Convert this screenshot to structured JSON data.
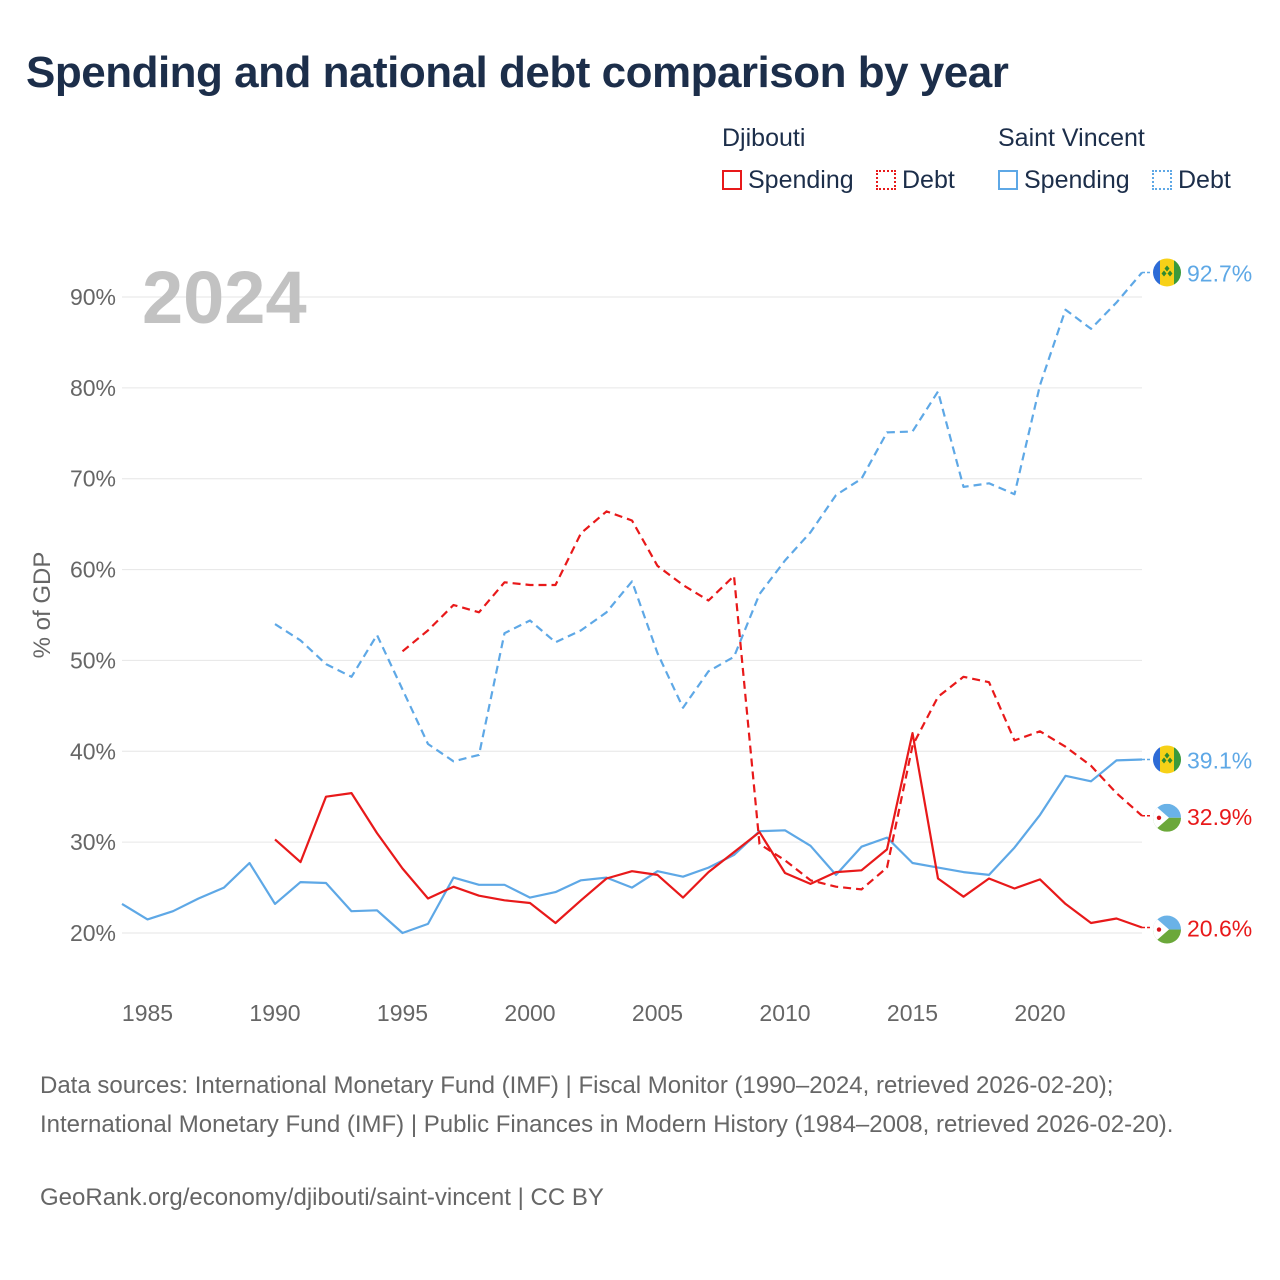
{
  "title": "Spending and national debt comparison by year",
  "legend": {
    "groups": [
      {
        "name": "Djibouti",
        "items": [
          "Spending",
          "Debt"
        ]
      },
      {
        "name": "Saint Vincent",
        "items": [
          "Spending",
          "Debt"
        ]
      }
    ]
  },
  "year_label": "2024",
  "sources": "Data sources: International Monetary Fund (IMF) | Fiscal Monitor (1990–2024, retrieved 2026-02-20); International Monetary Fund (IMF) | Public Finances in Modern History (1984–2008, retrieved 2026-02-20).",
  "credit": "GeoRank.org/economy/djibouti/saint-vincent | CC BY",
  "colors": {
    "djibouti": "#e8191a",
    "saint_vincent": "#5ea8e6"
  },
  "chart_data": {
    "type": "line",
    "title": "Spending and national debt comparison by year",
    "xlabel": "",
    "ylabel": "% of GDP",
    "xlim": [
      1984,
      2024
    ],
    "ylim": [
      15,
      95
    ],
    "xticks": [
      1985,
      1990,
      1995,
      2000,
      2005,
      2010,
      2015,
      2020
    ],
    "yticks": [
      20,
      30,
      40,
      50,
      60,
      70,
      80,
      90
    ],
    "ytick_labels": [
      "20%",
      "30%",
      "40%",
      "50%",
      "60%",
      "70%",
      "80%",
      "90%"
    ],
    "series": [
      {
        "name": "Saint Vincent Debt",
        "country": "saint_vincent",
        "style": "dashed",
        "x": [
          1990,
          1991,
          1992,
          1993,
          1994,
          1995,
          1996,
          1997,
          1998,
          1999,
          2000,
          2001,
          2002,
          2003,
          2004,
          2005,
          2006,
          2007,
          2008,
          2009,
          2010,
          2011,
          2012,
          2013,
          2014,
          2015,
          2016,
          2017,
          2018,
          2019,
          2020,
          2021,
          2022,
          2023,
          2024
        ],
        "values": [
          54.0,
          52.2,
          49.6,
          48.2,
          52.8,
          46.8,
          40.8,
          38.9,
          39.6,
          53.0,
          54.4,
          52.0,
          53.3,
          55.3,
          58.7,
          50.8,
          44.8,
          48.8,
          50.4,
          57.3,
          61.0,
          64.1,
          68.2,
          70.0,
          75.1,
          75.2,
          79.6,
          69.1,
          69.5,
          68.3,
          80.3,
          88.6,
          86.5,
          89.4,
          92.7
        ],
        "end_label": "92.7%"
      },
      {
        "name": "Saint Vincent Spending",
        "country": "saint_vincent",
        "style": "solid",
        "x": [
          1984,
          1985,
          1986,
          1987,
          1988,
          1989,
          1990,
          1991,
          1992,
          1993,
          1994,
          1995,
          1996,
          1997,
          1998,
          1999,
          2000,
          2001,
          2002,
          2003,
          2004,
          2005,
          2006,
          2007,
          2008,
          2009,
          2010,
          2011,
          2012,
          2013,
          2014,
          2015,
          2016,
          2017,
          2018,
          2019,
          2020,
          2021,
          2022,
          2023,
          2024
        ],
        "values": [
          23.2,
          21.5,
          22.4,
          23.8,
          25.0,
          27.7,
          23.2,
          25.6,
          25.5,
          22.4,
          22.5,
          20.0,
          21.0,
          26.1,
          25.3,
          25.3,
          23.9,
          24.5,
          25.8,
          26.1,
          25.0,
          26.8,
          26.2,
          27.2,
          28.6,
          31.2,
          31.3,
          29.6,
          26.4,
          29.5,
          30.5,
          27.7,
          27.2,
          26.7,
          26.4,
          29.4,
          33.0,
          37.3,
          36.7,
          39.0,
          39.1
        ],
        "end_label": "39.1%"
      },
      {
        "name": "Djibouti Debt",
        "country": "djibouti",
        "style": "dashed",
        "x": [
          1995,
          1996,
          1997,
          1998,
          1999,
          2000,
          2001,
          2002,
          2003,
          2004,
          2005,
          2006,
          2007,
          2008,
          2009,
          2010,
          2011,
          2012,
          2013,
          2014,
          2015,
          2016,
          2017,
          2018,
          2019,
          2020,
          2021,
          2022,
          2023,
          2024
        ],
        "values": [
          51.0,
          53.3,
          56.1,
          55.3,
          58.6,
          58.3,
          58.3,
          64.0,
          66.4,
          65.4,
          60.4,
          58.3,
          56.6,
          59.3,
          29.8,
          28.0,
          25.8,
          25.1,
          24.8,
          27.2,
          40.6,
          46.0,
          48.2,
          47.6,
          41.2,
          42.2,
          40.5,
          38.4,
          35.4,
          32.9
        ],
        "end_label": "32.9%"
      },
      {
        "name": "Djibouti Spending",
        "country": "djibouti",
        "style": "solid",
        "x": [
          1990,
          1991,
          1992,
          1993,
          1994,
          1995,
          1996,
          1997,
          1998,
          1999,
          2000,
          2001,
          2002,
          2003,
          2004,
          2005,
          2006,
          2007,
          2008,
          2009,
          2010,
          2011,
          2012,
          2013,
          2014,
          2015,
          2016,
          2017,
          2018,
          2019,
          2020,
          2021,
          2022,
          2023,
          2024
        ],
        "values": [
          30.3,
          27.8,
          35.0,
          35.4,
          31.0,
          27.1,
          23.8,
          25.1,
          24.1,
          23.6,
          23.3,
          21.1,
          23.6,
          26.0,
          26.8,
          26.4,
          23.9,
          26.7,
          28.9,
          31.1,
          26.6,
          25.4,
          26.7,
          26.9,
          29.2,
          42.0,
          26.0,
          24.0,
          26.0,
          24.9,
          25.9,
          23.2,
          21.1,
          21.6,
          20.6
        ],
        "end_label": "20.6%"
      }
    ]
  }
}
